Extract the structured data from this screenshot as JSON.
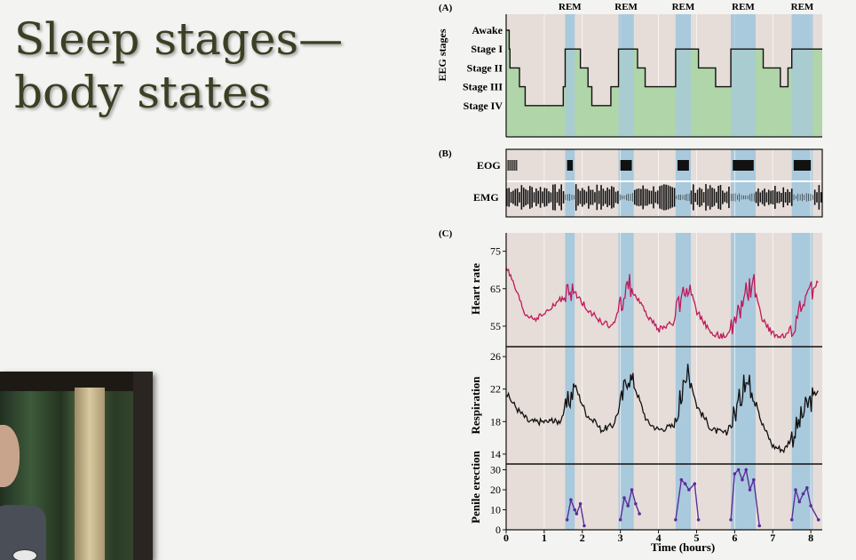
{
  "slide": {
    "title": "Sleep stages—\nbody states"
  },
  "panels": {
    "a": "(A)",
    "b": "(B)",
    "c": "(C)"
  },
  "eeg": {
    "axis_label": "EEG stages",
    "stages": [
      "Awake",
      "Stage I",
      "Stage II",
      "Stage III",
      "Stage IV"
    ]
  },
  "rem_label": "REM",
  "rem_periods_hours": [
    [
      1.55,
      1.8
    ],
    [
      2.95,
      3.35
    ],
    [
      4.45,
      4.85
    ],
    [
      5.9,
      6.55
    ],
    [
      7.5,
      8.05
    ]
  ],
  "eog": {
    "label": "EOG"
  },
  "emg": {
    "label": "EMG"
  },
  "heart": {
    "label": "Heart rate",
    "ticks": [
      "75",
      "65",
      "55"
    ]
  },
  "respiration": {
    "label": "Respiration",
    "ticks": [
      "26",
      "22",
      "18",
      "14"
    ]
  },
  "penile": {
    "label": "Penile erection",
    "ticks": [
      "30",
      "20",
      "10",
      "0"
    ]
  },
  "time_axis": {
    "label": "Time (hours)",
    "ticks": [
      "0",
      "1",
      "2",
      "3",
      "4",
      "5",
      "6",
      "7",
      "8"
    ]
  },
  "colors": {
    "rem_band": "#a9c9dc",
    "stage_fill": "#a8d4a4",
    "bg_band": "#e6ddd8",
    "heart_line": "#c0185a",
    "resp_line": "#111111",
    "penile_line": "#5a2d99",
    "title": "#3c3f24"
  },
  "chart_data": [
    {
      "type": "line",
      "title": "",
      "xlabel": "",
      "ylabel": "EEG stages",
      "categories_y": [
        "Awake",
        "Stage I",
        "Stage II",
        "Stage III",
        "Stage IV"
      ],
      "x": [
        0,
        0.08,
        0.1,
        0.2,
        0.35,
        0.5,
        1.35,
        1.5,
        1.55,
        1.8,
        1.95,
        2.15,
        2.25,
        2.65,
        2.75,
        2.95,
        3.35,
        3.45,
        3.65,
        4.25,
        4.45,
        4.85,
        5.05,
        5.5,
        5.9,
        6.55,
        6.75,
        7.2,
        7.4,
        7.5,
        8.3
      ],
      "series": [
        {
          "values": [
            0,
            1,
            2,
            2,
            3,
            4,
            4,
            3,
            1,
            1,
            2,
            3,
            4,
            4,
            3,
            1,
            1,
            2,
            3,
            3,
            1,
            1,
            2,
            3,
            1,
            1,
            2,
            3,
            2,
            1,
            1
          ]
        }
      ]
    },
    {
      "type": "line",
      "title": "",
      "xlabel": "",
      "ylabel": "Heart rate",
      "ylim": [
        50,
        78
      ],
      "x": [
        0,
        0.2,
        0.5,
        0.8,
        1.1,
        1.4,
        1.6,
        1.8,
        2.1,
        2.5,
        2.8,
        3.0,
        3.2,
        3.4,
        3.7,
        4.0,
        4.4,
        4.6,
        4.8,
        5.0,
        5.4,
        5.8,
        6.0,
        6.3,
        6.5,
        6.7,
        7.0,
        7.3,
        7.6,
        7.9,
        8.2
      ],
      "series": [
        {
          "values": [
            71,
            66,
            58,
            57,
            59,
            62,
            63,
            64,
            60,
            56,
            55,
            60,
            67,
            63,
            58,
            54,
            56,
            63,
            66,
            59,
            53,
            52,
            56,
            64,
            67,
            57,
            53,
            52,
            56,
            63,
            67
          ]
        }
      ]
    },
    {
      "type": "line",
      "title": "",
      "xlabel": "",
      "ylabel": "Respiration",
      "ylim": [
        13,
        27
      ],
      "x": [
        0,
        0.3,
        0.6,
        1.0,
        1.4,
        1.6,
        1.8,
        2.1,
        2.5,
        2.8,
        3.0,
        3.2,
        3.4,
        3.7,
        4.0,
        4.4,
        4.6,
        4.8,
        5.0,
        5.4,
        5.8,
        6.0,
        6.3,
        6.5,
        6.7,
        7.0,
        7.3,
        7.6,
        7.9,
        8.2
      ],
      "series": [
        {
          "values": [
            21.5,
            19.5,
            18,
            18,
            18,
            20,
            22.5,
            19,
            17,
            17.5,
            20,
            24,
            22,
            18,
            17,
            17.5,
            21,
            24,
            20,
            17,
            16.5,
            19,
            23,
            22,
            18,
            15,
            14.5,
            17,
            20,
            22
          ]
        }
      ]
    },
    {
      "type": "line",
      "title": "",
      "xlabel": "Time (hours)",
      "ylabel": "Penile erection",
      "ylim": [
        0,
        32
      ],
      "series": [
        {
          "x": [
            1.6,
            1.7,
            1.8,
            1.85,
            1.95,
            2.05
          ],
          "values": [
            5,
            15,
            10,
            8,
            13,
            2
          ]
        },
        {
          "x": [
            3.0,
            3.1,
            3.2,
            3.3,
            3.4,
            3.5
          ],
          "values": [
            5,
            16,
            12,
            20,
            13,
            8
          ]
        },
        {
          "x": [
            4.45,
            4.6,
            4.7,
            4.8,
            4.95,
            5.05
          ],
          "values": [
            5,
            25,
            23,
            20,
            23,
            5
          ]
        },
        {
          "x": [
            5.9,
            6.0,
            6.1,
            6.2,
            6.3,
            6.4,
            6.5,
            6.65
          ],
          "values": [
            5,
            28,
            30,
            25,
            30,
            20,
            25,
            2
          ]
        },
        {
          "x": [
            7.5,
            7.6,
            7.7,
            7.8,
            7.9,
            8.0,
            8.2
          ],
          "values": [
            5,
            20,
            14,
            18,
            21,
            12,
            5
          ]
        }
      ]
    }
  ]
}
